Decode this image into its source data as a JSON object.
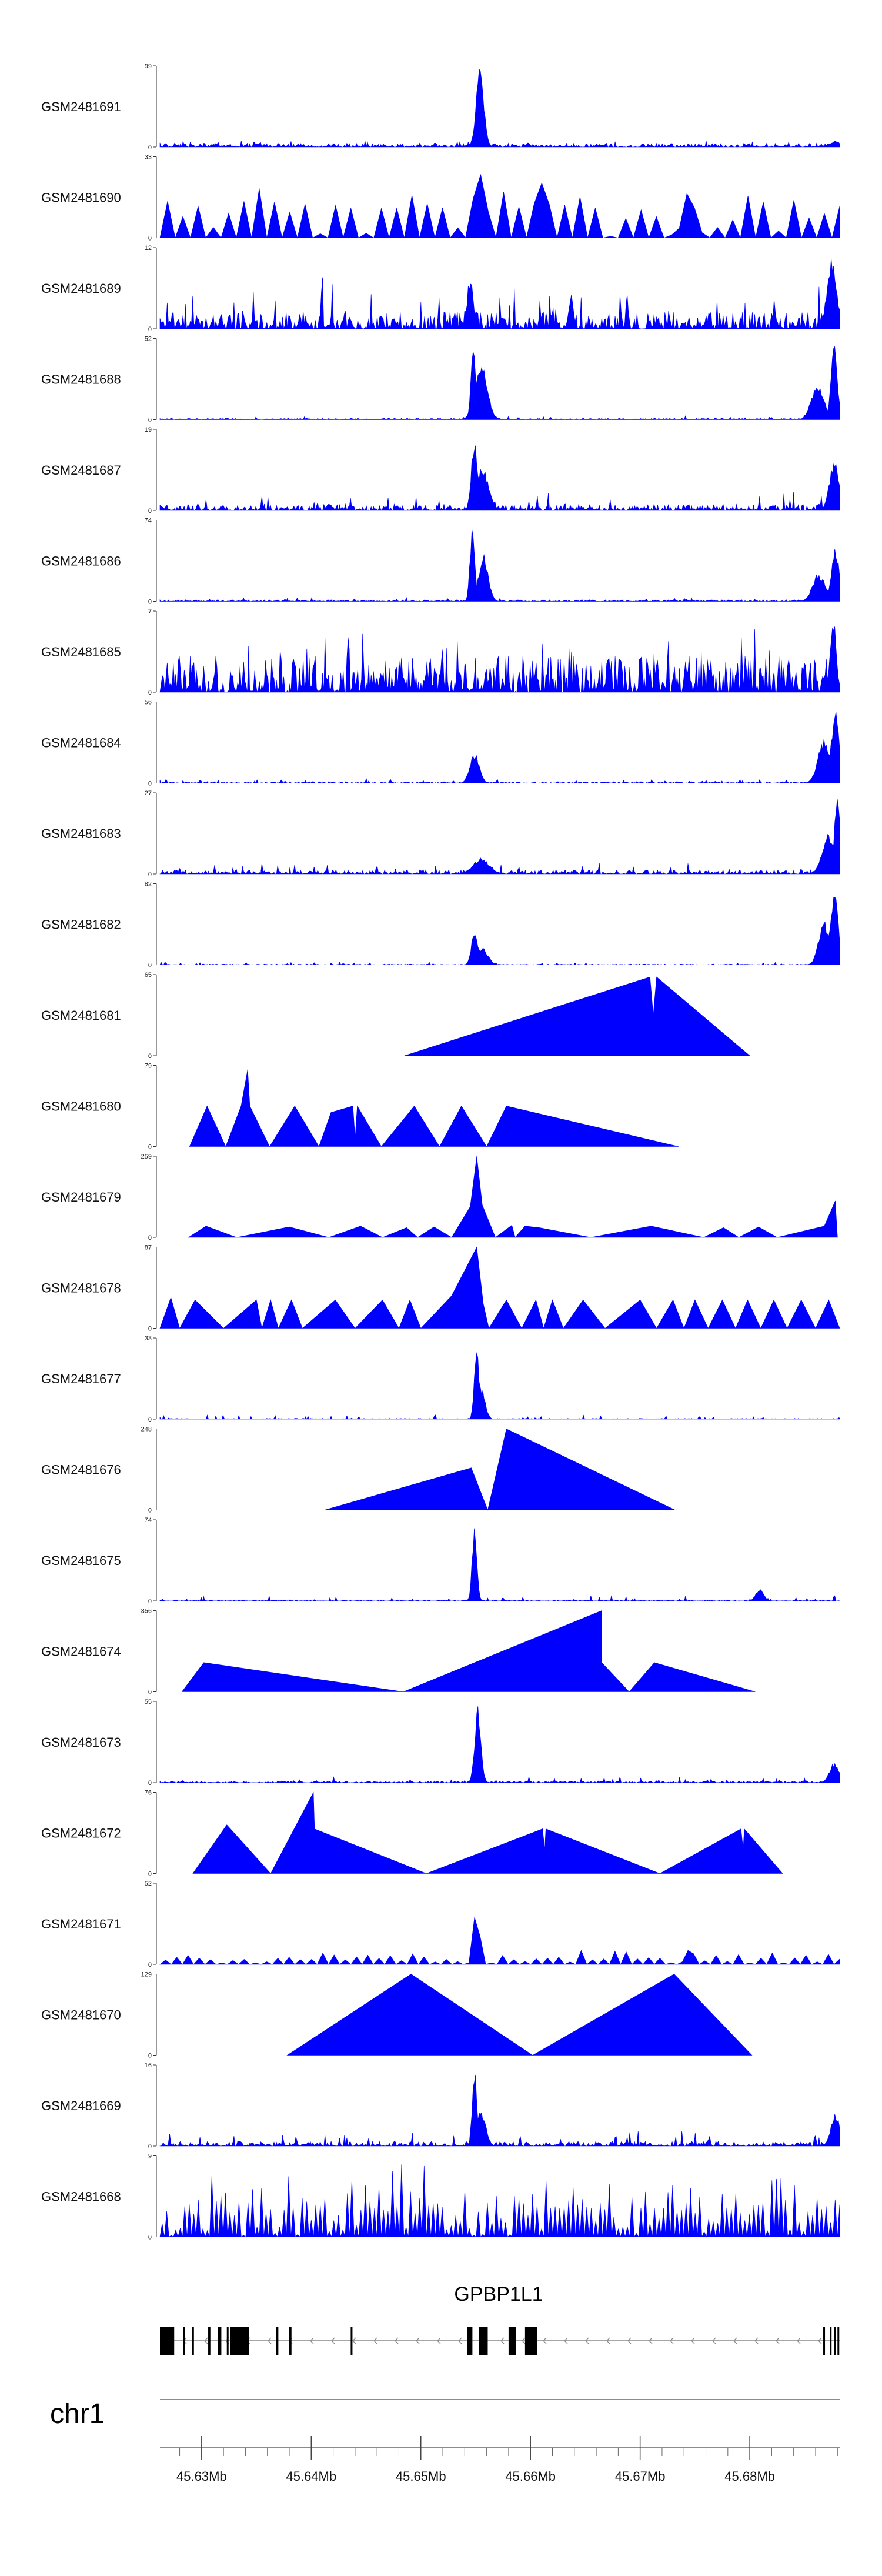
{
  "chart_data": {
    "type": "area",
    "title": "",
    "genome": {
      "chromosome": "chr1",
      "start": 45.6262,
      "end": 45.6882,
      "unit": "Mb"
    },
    "fill_color": "#0000ff",
    "tracks": [
      {
        "name": "GSM2481691",
        "ymax": "99",
        "style": "noise",
        "base": 0.05,
        "vol": 0.06,
        "peaks": [
          [
            45.6554,
            1.0,
            0.0005
          ],
          [
            45.6878,
            0.08,
            0.0006
          ]
        ]
      },
      {
        "name": "GSM2481690",
        "ymax": "33",
        "style": "triangles",
        "span": [
          45.6262,
          45.6882
        ],
        "n": 44,
        "base": 0.45,
        "vol": 0.4,
        "peaks": [
          [
            45.6555,
            0.95,
            0.0006
          ],
          [
            45.6608,
            0.85,
            0.0005
          ],
          [
            45.6745,
            0.6,
            0.0008
          ]
        ]
      },
      {
        "name": "GSM2481689",
        "ymax": "12",
        "style": "noise",
        "base": 0.22,
        "vol": 0.45,
        "peaks": [
          [
            45.6545,
            0.65,
            0.0004
          ],
          [
            45.6875,
            0.95,
            0.0006
          ],
          [
            45.6637,
            0.45,
            0.0003
          ]
        ]
      },
      {
        "name": "GSM2481688",
        "ymax": "52",
        "style": "noise",
        "base": 0.02,
        "vol": 0.04,
        "peaks": [
          [
            45.6548,
            1.0,
            0.0003
          ],
          [
            45.6555,
            0.7,
            0.0008
          ],
          [
            45.6862,
            0.45,
            0.0008
          ],
          [
            45.6877,
            0.95,
            0.0004
          ]
        ]
      },
      {
        "name": "GSM2481687",
        "ymax": "19",
        "style": "noise",
        "base": 0.08,
        "vol": 0.18,
        "peaks": [
          [
            45.6549,
            0.95,
            0.0004
          ],
          [
            45.6556,
            0.55,
            0.0008
          ],
          [
            45.6877,
            0.65,
            0.0006
          ]
        ]
      },
      {
        "name": "GSM2481686",
        "ymax": "74",
        "style": "noise",
        "base": 0.02,
        "vol": 0.04,
        "peaks": [
          [
            45.6547,
            1.0,
            0.0003
          ],
          [
            45.6557,
            0.6,
            0.0006
          ],
          [
            45.6863,
            0.35,
            0.0008
          ],
          [
            45.6878,
            0.7,
            0.0005
          ]
        ]
      },
      {
        "name": "GSM2481685",
        "ymax": "7",
        "style": "noise",
        "base": 0.45,
        "vol": 0.55,
        "peaks": [
          [
            45.6876,
            0.95,
            0.0004
          ]
        ]
      },
      {
        "name": "GSM2481684",
        "ymax": "56",
        "style": "noise",
        "base": 0.02,
        "vol": 0.04,
        "peaks": [
          [
            45.6549,
            0.38,
            0.0006
          ],
          [
            45.6868,
            0.55,
            0.0008
          ],
          [
            45.6878,
            0.95,
            0.0005
          ]
        ]
      },
      {
        "name": "GSM2481683",
        "ymax": "27",
        "style": "noise",
        "base": 0.05,
        "vol": 0.1,
        "peaks": [
          [
            45.6555,
            0.2,
            0.001
          ],
          [
            45.6872,
            0.5,
            0.0008
          ],
          [
            45.688,
            1.0,
            0.0004
          ]
        ]
      },
      {
        "name": "GSM2481682",
        "ymax": "82",
        "style": "noise",
        "base": 0.01,
        "vol": 0.03,
        "peaks": [
          [
            45.6549,
            0.45,
            0.0004
          ],
          [
            45.6556,
            0.22,
            0.0007
          ],
          [
            45.6868,
            0.55,
            0.0007
          ],
          [
            45.6877,
            0.95,
            0.0005
          ]
        ]
      },
      {
        "name": "GSM2481681",
        "ymax": "65",
        "style": "triangles",
        "points": [
          [
            45.6485,
            0
          ],
          [
            45.6709,
            0.97
          ],
          [
            45.6712,
            0.5
          ],
          [
            45.6715,
            0.97
          ],
          [
            45.68,
            0
          ]
        ]
      },
      {
        "name": "GSM2481680",
        "ymax": "79",
        "style": "triangles",
        "points": [
          [
            45.6289,
            0
          ],
          [
            45.6305,
            0.5
          ],
          [
            45.6322,
            0
          ],
          [
            45.6336,
            0.5
          ],
          [
            45.6342,
            0.95
          ],
          [
            45.6344,
            0.5
          ],
          [
            45.6362,
            0
          ],
          [
            45.6385,
            0.5
          ],
          [
            45.6407,
            0
          ],
          [
            45.6418,
            0.42
          ],
          [
            45.6438,
            0.5
          ],
          [
            45.644,
            0.1
          ],
          [
            45.6442,
            0.5
          ],
          [
            45.6464,
            0
          ],
          [
            45.6494,
            0.5
          ],
          [
            45.6517,
            0
          ],
          [
            45.6537,
            0.5
          ],
          [
            45.656,
            0
          ],
          [
            45.6578,
            0.5
          ],
          [
            45.6735,
            0
          ]
        ]
      },
      {
        "name": "GSM2481679",
        "ymax": "259",
        "style": "triangles",
        "points": [
          [
            45.6288,
            0
          ],
          [
            45.6304,
            0.14
          ],
          [
            45.6332,
            0
          ],
          [
            45.638,
            0.13
          ],
          [
            45.6416,
            0
          ],
          [
            45.6445,
            0.14
          ],
          [
            45.6465,
            0
          ],
          [
            45.6487,
            0.12
          ],
          [
            45.6497,
            0
          ],
          [
            45.6512,
            0.13
          ],
          [
            45.6528,
            0
          ],
          [
            45.6545,
            0.38
          ],
          [
            45.6551,
            1.0
          ],
          [
            45.6556,
            0.4
          ],
          [
            45.6568,
            0
          ],
          [
            45.6583,
            0.15
          ],
          [
            45.6586,
            0
          ],
          [
            45.6595,
            0.14
          ],
          [
            45.6608,
            0.12
          ],
          [
            45.6655,
            0
          ],
          [
            45.671,
            0.14
          ],
          [
            45.6758,
            0
          ],
          [
            45.6776,
            0.12
          ],
          [
            45.679,
            0
          ],
          [
            45.6808,
            0.13
          ],
          [
            45.6825,
            0
          ],
          [
            45.6868,
            0.14
          ],
          [
            45.6878,
            0.45
          ],
          [
            45.688,
            0
          ]
        ]
      },
      {
        "name": "GSM2481678",
        "ymax": "87",
        "style": "triangles",
        "points": [
          [
            45.6262,
            0
          ],
          [
            45.6272,
            0.38
          ],
          [
            45.628,
            0
          ],
          [
            45.6294,
            0.35
          ],
          [
            45.632,
            0
          ],
          [
            45.635,
            0.35
          ],
          [
            45.6355,
            0
          ],
          [
            45.6363,
            0.35
          ],
          [
            45.637,
            0
          ],
          [
            45.6382,
            0.35
          ],
          [
            45.6392,
            0
          ],
          [
            45.6422,
            0.35
          ],
          [
            45.644,
            0
          ],
          [
            45.6465,
            0.35
          ],
          [
            45.648,
            0
          ],
          [
            45.649,
            0.35
          ],
          [
            45.65,
            0
          ],
          [
            45.6528,
            0.4
          ],
          [
            45.6551,
            1.0
          ],
          [
            45.6557,
            0.3
          ],
          [
            45.6562,
            0
          ],
          [
            45.6578,
            0.35
          ],
          [
            45.6592,
            0
          ],
          [
            45.6605,
            0.35
          ],
          [
            45.6612,
            0
          ],
          [
            45.662,
            0.35
          ],
          [
            45.663,
            0
          ],
          [
            45.6648,
            0.35
          ],
          [
            45.6668,
            0
          ],
          [
            45.67,
            0.35
          ],
          [
            45.6715,
            0
          ],
          [
            45.673,
            0.35
          ],
          [
            45.674,
            0
          ],
          [
            45.675,
            0.35
          ],
          [
            45.6762,
            0
          ],
          [
            45.6775,
            0.35
          ],
          [
            45.6787,
            0
          ],
          [
            45.6798,
            0.35
          ],
          [
            45.681,
            0
          ],
          [
            45.6822,
            0.35
          ],
          [
            45.6834,
            0
          ],
          [
            45.6847,
            0.35
          ],
          [
            45.686,
            0
          ],
          [
            45.6872,
            0.35
          ],
          [
            45.6882,
            0
          ]
        ]
      },
      {
        "name": "GSM2481677",
        "ymax": "33",
        "style": "noise",
        "base": 0.01,
        "vol": 0.05,
        "peaks": [
          [
            45.6551,
            1.0,
            0.0003
          ],
          [
            45.6555,
            0.4,
            0.0005
          ]
        ]
      },
      {
        "name": "GSM2481676",
        "ymax": "248",
        "style": "triangles",
        "points": [
          [
            45.6412,
            0
          ],
          [
            45.6546,
            0.52
          ],
          [
            45.6561,
            0
          ],
          [
            45.6578,
            1.0
          ],
          [
            45.6732,
            0
          ]
        ]
      },
      {
        "name": "GSM2481675",
        "ymax": "74",
        "style": "noise",
        "base": 0.01,
        "vol": 0.06,
        "peaks": [
          [
            45.6549,
            1.0,
            0.0003
          ],
          [
            45.6809,
            0.15,
            0.0005
          ]
        ]
      },
      {
        "name": "GSM2481674",
        "ymax": "356",
        "style": "triangles",
        "points": [
          [
            45.6282,
            0
          ],
          [
            45.6302,
            0.36
          ],
          [
            45.6484,
            0
          ],
          [
            45.6665,
            1.0
          ],
          [
            45.6665,
            0.36
          ],
          [
            45.669,
            0
          ],
          [
            45.6713,
            0.36
          ],
          [
            45.6805,
            0
          ]
        ]
      },
      {
        "name": "GSM2481673",
        "ymax": "55",
        "style": "noise",
        "base": 0.02,
        "vol": 0.06,
        "peaks": [
          [
            45.6552,
            1.0,
            0.0004
          ],
          [
            45.6877,
            0.25,
            0.0006
          ]
        ]
      },
      {
        "name": "GSM2481672",
        "ymax": "76",
        "style": "triangles",
        "points": [
          [
            45.6292,
            0
          ],
          [
            45.6323,
            0.6
          ],
          [
            45.6363,
            0
          ],
          [
            45.6402,
            1.0
          ],
          [
            45.6403,
            0.55
          ],
          [
            45.6505,
            0
          ],
          [
            45.6611,
            0.55
          ],
          [
            45.6613,
            0.3
          ],
          [
            45.6614,
            0.55
          ],
          [
            45.6718,
            0
          ],
          [
            45.6792,
            0.55
          ],
          [
            45.6794,
            0.3
          ],
          [
            45.6795,
            0.55
          ],
          [
            45.683,
            0
          ]
        ]
      },
      {
        "name": "GSM2481671",
        "ymax": "52",
        "style": "triangles",
        "span": [
          45.6262,
          45.6882
        ],
        "n": 60,
        "base": 0.08,
        "vol": 0.12,
        "peaks": [
          [
            45.6551,
            1.0,
            0.0003
          ],
          [
            45.6745,
            0.2,
            0.0004
          ]
        ]
      },
      {
        "name": "GSM2481670",
        "ymax": "129",
        "style": "triangles",
        "points": [
          [
            45.6378,
            0
          ],
          [
            45.6491,
            1.0
          ],
          [
            45.6602,
            0
          ],
          [
            45.6731,
            1.0
          ],
          [
            45.6802,
            0
          ]
        ]
      },
      {
        "name": "GSM2481669",
        "ymax": "16",
        "style": "noise",
        "base": 0.06,
        "vol": 0.14,
        "peaks": [
          [
            45.6549,
            1.0,
            0.0003
          ],
          [
            45.6555,
            0.45,
            0.0006
          ],
          [
            45.6878,
            0.4,
            0.0006
          ]
        ]
      },
      {
        "name": "GSM2481668",
        "ymax": "9",
        "style": "triangles",
        "span": [
          45.6262,
          45.6882
        ],
        "n": 150,
        "base": 0.5,
        "vol": 0.5,
        "peaks": []
      }
    ],
    "gene": {
      "label": "GPBP1L1",
      "strand": "-",
      "span": [
        45.6262,
        45.6882
      ],
      "exons": [
        [
          45.6262,
          45.6275
        ],
        [
          45.6283,
          45.6285
        ],
        [
          45.6291,
          45.6293
        ],
        [
          45.6306,
          45.6308
        ],
        [
          45.6315,
          45.6318
        ],
        [
          45.6323,
          45.6324
        ],
        [
          45.6326,
          45.6343
        ],
        [
          45.6368,
          45.637
        ],
        [
          45.638,
          45.6382
        ],
        [
          45.6436,
          45.6437
        ],
        [
          45.6542,
          45.6547
        ],
        [
          45.6553,
          45.6561
        ],
        [
          45.658,
          45.6587
        ],
        [
          45.6595,
          45.6606
        ],
        [
          45.6867,
          45.6868
        ],
        [
          45.6873,
          45.6874
        ],
        [
          45.6877,
          45.6878
        ],
        [
          45.688,
          45.6881
        ]
      ]
    },
    "xaxis": {
      "ticks_major": [
        45.63,
        45.64,
        45.65,
        45.66,
        45.67,
        45.68
      ],
      "tick_labels": [
        "45.63Mb",
        "45.64Mb",
        "45.65Mb",
        "45.66Mb",
        "45.67Mb",
        "45.68Mb"
      ],
      "minor_step": 0.002
    }
  }
}
